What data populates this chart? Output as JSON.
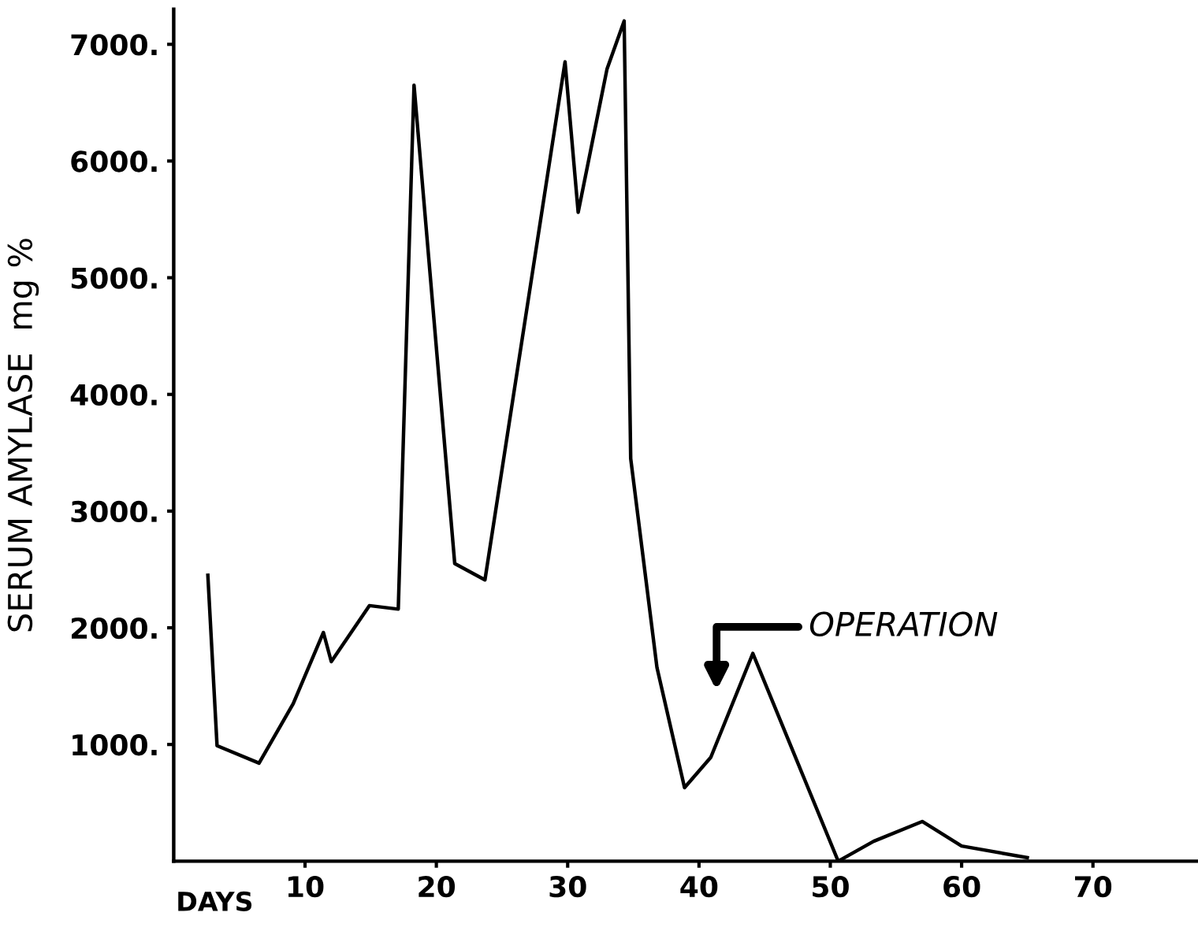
{
  "chart_data": {
    "type": "line",
    "xlabel": "DAYS",
    "ylabel": "SERUM AMYLASE  mg %",
    "x": [
      2.6,
      3.3,
      6.5,
      9.1,
      11.4,
      12.0,
      14.9,
      17.1,
      18.3,
      21.4,
      23.7,
      29.8,
      30.8,
      33.0,
      34.3,
      34.8,
      36.8,
      38.9,
      40.9,
      44.1,
      50.6,
      53.3,
      57.0,
      60.0,
      65.0
    ],
    "series": [
      {
        "color": "#000000",
        "values": [
          2450,
          990,
          840,
          1350,
          1960,
          1710,
          2190,
          2160,
          6650,
          2550,
          2410,
          6850,
          5560,
          6790,
          7200,
          3450,
          1660,
          630,
          890,
          1780,
          0,
          170,
          340,
          130,
          30
        ]
      }
    ],
    "xlim": [
      0,
      78
    ],
    "ylim": [
      0,
      7300
    ],
    "xticks": [
      10,
      20,
      30,
      40,
      50,
      60,
      70
    ],
    "yticks": [
      {
        "value": 1000,
        "label": "1000."
      },
      {
        "value": 2000,
        "label": "2000."
      },
      {
        "value": 3000,
        "label": "3000."
      },
      {
        "value": 4000,
        "label": "4000."
      },
      {
        "value": 5000,
        "label": "5000."
      },
      {
        "value": 6000,
        "label": "6000."
      },
      {
        "value": 7000,
        "label": "7000."
      }
    ],
    "annotations": [
      "OPERATION"
    ],
    "grid": false,
    "legend": false,
    "marker": "none",
    "line_style": "solid"
  }
}
